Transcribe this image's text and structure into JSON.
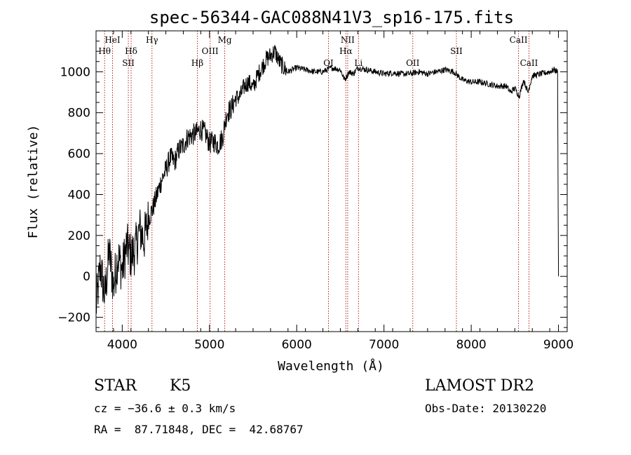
{
  "chart_data": {
    "type": "line",
    "title": "spec-56344-GAC088N41V3_sp16-175.fits",
    "xlabel": "Wavelength (Å)",
    "ylabel": "Flux (relative)",
    "xlim": [
      3700,
      9100
    ],
    "ylim": [
      -270,
      1200
    ],
    "xticks": [
      4000,
      5000,
      6000,
      7000,
      8000,
      9000
    ],
    "xtick_labels": [
      "4000",
      "5000",
      "6000",
      "7000",
      "8000",
      "9000"
    ],
    "yticks": [
      -200,
      0,
      200,
      400,
      600,
      800,
      1000
    ],
    "ytick_labels": [
      "−200",
      "0",
      "200",
      "400",
      "600",
      "800",
      "1000"
    ],
    "grid": false,
    "series": [
      {
        "x": [
          3700,
          3750,
          3800,
          3850,
          3900,
          3950,
          4000,
          4050,
          4100,
          4150,
          4200,
          4250,
          4300,
          4350,
          4400,
          4450,
          4500,
          4550,
          4600,
          4650,
          4700,
          4750,
          4800,
          4850,
          4900,
          4950,
          5000,
          5050,
          5100,
          5150,
          5200,
          5250,
          5300,
          5350,
          5400,
          5450,
          5500,
          5550,
          5600,
          5650,
          5700,
          5750,
          5800,
          5850,
          5900,
          5950,
          6000,
          6100,
          6200,
          6300,
          6400,
          6500,
          6550,
          6600,
          6650,
          6700,
          6800,
          6900,
          7000,
          7100,
          7200,
          7300,
          7400,
          7500,
          7600,
          7700,
          7800,
          7850,
          7900,
          8000,
          8100,
          8200,
          8300,
          8400,
          8450,
          8500,
          8550,
          8600,
          8650,
          8700,
          8800,
          8900,
          8950,
          8990,
          9000
        ],
        "values": [
          -150,
          50,
          -100,
          120,
          -50,
          100,
          30,
          150,
          100,
          130,
          230,
          180,
          280,
          330,
          400,
          470,
          520,
          580,
          560,
          620,
          640,
          680,
          690,
          700,
          720,
          700,
          650,
          660,
          640,
          680,
          800,
          820,
          870,
          880,
          930,
          950,
          920,
          980,
          1020,
          1060,
          1080,
          1100,
          1050,
          1020,
          1000,
          1010,
          1020,
          1010,
          1000,
          1000,
          1020,
          1010,
          960,
          1000,
          990,
          1020,
          1010,
          1000,
          990,
          995,
          990,
          990,
          1000,
          990,
          1000,
          1010,
          1000,
          980,
          960,
          950,
          950,
          940,
          930,
          930,
          900,
          920,
          880,
          960,
          900,
          980,
          990,
          1000,
          1010,
          1000,
          0
        ]
      }
    ],
    "spectral_lines": [
      {
        "label": "Hθ",
        "x": 3798,
        "row": 2
      },
      {
        "label": "HeI",
        "x": 3889,
        "row": 1
      },
      {
        "label": "SII",
        "x": 4070,
        "row": 3
      },
      {
        "label": "Hδ",
        "x": 4102,
        "row": 2
      },
      {
        "label": "Hγ",
        "x": 4341,
        "row": 1
      },
      {
        "label": "Hβ",
        "x": 4861,
        "row": 3
      },
      {
        "label": "OIII",
        "x": 5007,
        "row": 2
      },
      {
        "label": "Mg",
        "x": 5175,
        "row": 1
      },
      {
        "label": "OI",
        "x": 6364,
        "row": 3
      },
      {
        "label": "NII",
        "x": 6584,
        "row": 1
      },
      {
        "label": "Hα",
        "x": 6563,
        "row": 2
      },
      {
        "label": "Li",
        "x": 6708,
        "row": 3
      },
      {
        "label": "OII",
        "x": 7330,
        "row": 3
      },
      {
        "label": "SII",
        "x": 7830,
        "row": 2
      },
      {
        "label": "CaII",
        "x": 8542,
        "row": 1
      },
      {
        "label": "CaII",
        "x": 8662,
        "row": 3
      }
    ]
  },
  "info": {
    "object_type": "STAR",
    "subclass": "K5",
    "survey": "LAMOST DR2",
    "redshift": "cz = −36.6 ± 0.3 km/s",
    "obs_date": "Obs-Date: 20130220",
    "coords": "RA =  87.71848, DEC =  42.68767"
  }
}
